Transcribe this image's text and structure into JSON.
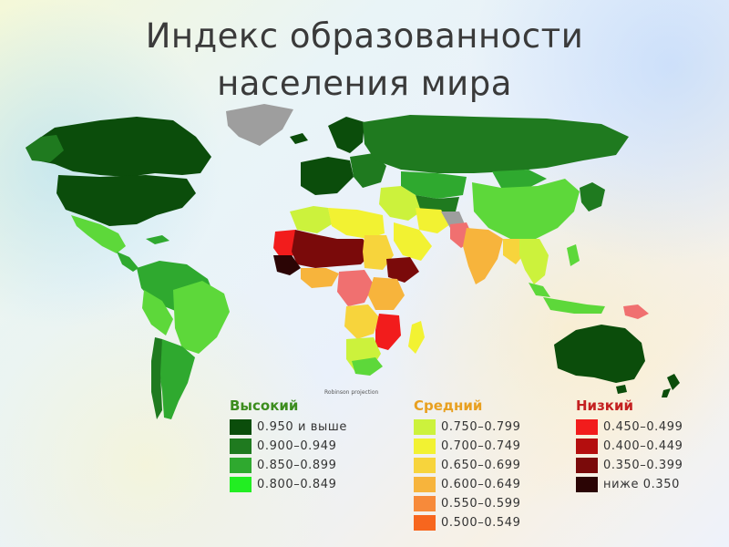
{
  "title": {
    "line1": "Индекс образованности",
    "line2": "населения мира"
  },
  "scale_caption": "Robinson projection",
  "legend": {
    "high": {
      "heading": "Высокий",
      "color": "#3c8d1e",
      "items": [
        {
          "label": "0.950 и выше",
          "color": "#0b4d0b"
        },
        {
          "label": "0.900–0.949",
          "color": "#1f7a1f"
        },
        {
          "label": "0.850–0.899",
          "color": "#2fa92f"
        },
        {
          "label": "0.800–0.849",
          "color": "#22ee22"
        }
      ]
    },
    "medium": {
      "heading": "Средний",
      "color": "#e8a020",
      "items": [
        {
          "label": "0.750–0.799",
          "color": "#ccf23c"
        },
        {
          "label": "0.700–0.749",
          "color": "#f2f232"
        },
        {
          "label": "0.650–0.699",
          "color": "#f7d43c"
        },
        {
          "label": "0.600–0.649",
          "color": "#f7b43c"
        },
        {
          "label": "0.550–0.599",
          "color": "#f78a3a"
        },
        {
          "label": "0.500–0.549",
          "color": "#f7661e"
        }
      ]
    },
    "low": {
      "heading": "Низкий",
      "color": "#c42020",
      "items": [
        {
          "label": "0.450–0.499",
          "color": "#f21c1c"
        },
        {
          "label": "0.400–0.449",
          "color": "#b40e0e"
        },
        {
          "label": "0.350–0.399",
          "color": "#7a0a0a"
        },
        {
          "label": "ниже 0.350",
          "color": "#2b0505"
        }
      ]
    }
  },
  "region_colors": {
    "no_data": "#9e9e9e",
    "very_high": "#0b4d0b",
    "high": "#1f7a1f",
    "upper": "#2fa92f",
    "light": "#5dd83a",
    "yellow_green": "#ccf23c",
    "yellow": "#f2f232",
    "gold": "#f7d43c",
    "orange": "#f7b43c",
    "dark_orange": "#f78a3a",
    "pink_red": "#f07070",
    "red": "#f21c1c",
    "dark_red": "#7a0a0a"
  }
}
